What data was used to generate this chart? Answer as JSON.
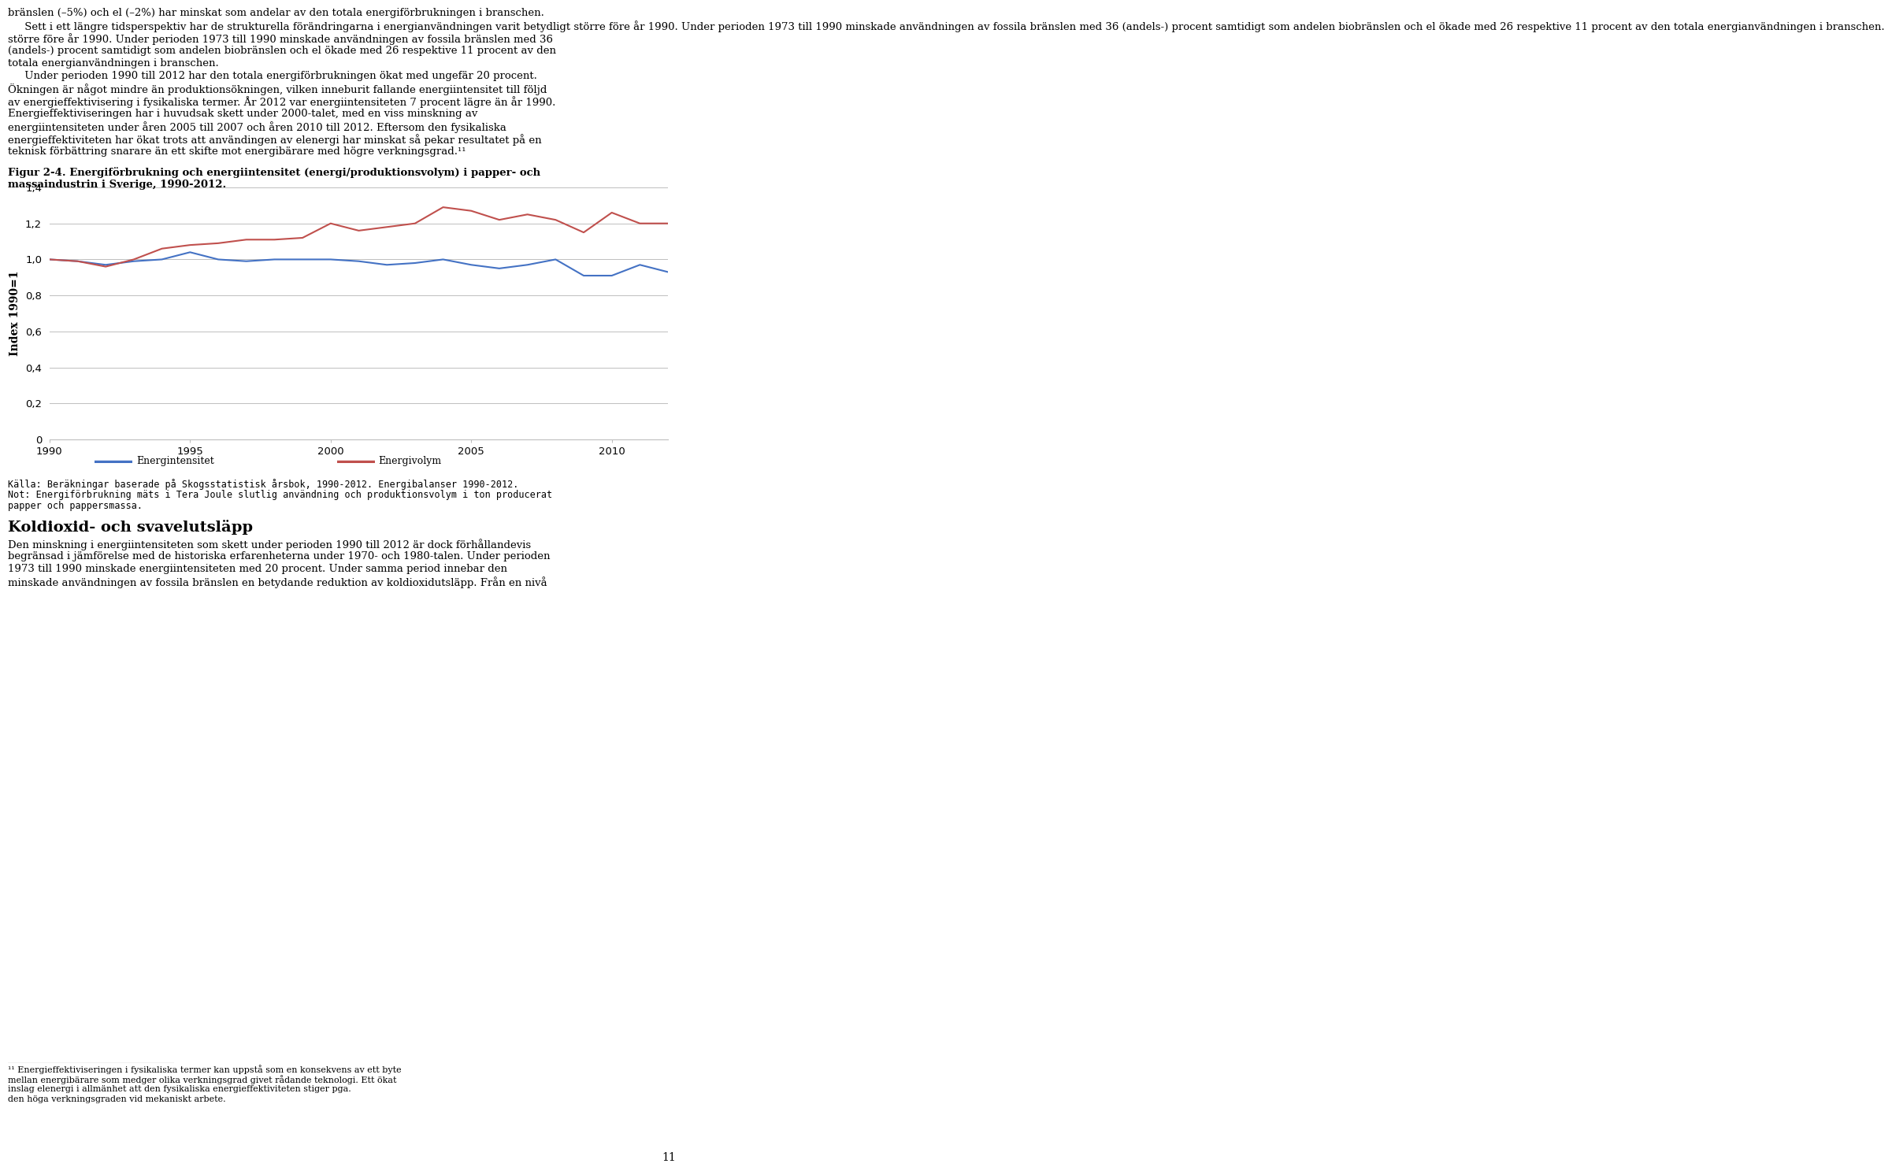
{
  "years": [
    1990,
    1991,
    1992,
    1993,
    1994,
    1995,
    1996,
    1997,
    1998,
    1999,
    2000,
    2001,
    2002,
    2003,
    2004,
    2005,
    2006,
    2007,
    2008,
    2009,
    2010,
    2011,
    2012
  ],
  "energiintensitet": [
    1.0,
    0.99,
    0.97,
    0.99,
    1.0,
    1.04,
    1.0,
    0.99,
    1.0,
    1.0,
    1.0,
    0.99,
    0.97,
    0.98,
    1.0,
    0.97,
    0.95,
    0.97,
    1.0,
    0.91,
    0.91,
    0.97,
    0.93
  ],
  "energivolym": [
    1.0,
    0.99,
    0.96,
    1.0,
    1.06,
    1.08,
    1.09,
    1.11,
    1.11,
    1.12,
    1.2,
    1.16,
    1.18,
    1.2,
    1.29,
    1.27,
    1.22,
    1.25,
    1.22,
    1.15,
    1.26,
    1.2,
    1.2
  ],
  "energiintensitet_color": "#4472C4",
  "energivolym_color": "#C0504D",
  "ylim": [
    0,
    1.4
  ],
  "yticks": [
    0,
    0.2,
    0.4,
    0.6,
    0.8,
    1.0,
    1.2,
    1.4
  ],
  "xticks": [
    1990,
    1995,
    2000,
    2005,
    2010
  ],
  "ylabel": "Index 1990=1",
  "legend_labels": [
    "Energintensitet",
    "Energivolym"
  ],
  "figure_caption_line1": "Figur 2-4. Energiförbrukning och energiintensitet (energi/produktionsvolym) i papper- och",
  "figure_caption_line2": "massaindustrin i Sverige, 1990-2012.",
  "source_line1": "Källa: Beräkningar baserade på Skogsstatistisk årsbok, 1990-2012. Energibalanser 1990-2012.",
  "source_line2": "Not: Energiförbrukning mäts i Tera Joule slutlig användning och produktionsvolym i ton producerat",
  "source_line3": "papper och pappersmassa.",
  "bg_color": "#ffffff",
  "grid_color": "#bebebe",
  "line_width": 1.5,
  "text_above": [
    "bränslen (–5%) och el (–2%) har minskat som andelar av den totala energiförbrukningen i branschen.",
    "     Sett i ett längre tidsperspektiv har de strukturella förändringarna i energianvändningen varit betydligt större före år 1990. Under perioden 1973 till 1990 minskade användningen av fossila bränslen med 36 (andels-) procent samtidigt som andelen biobränslen och el ökade med 26 respektive 11 procent av den totala energianvändningen i branschen.",
    "     Under perioden 1990 till 2012 har den totala energiförbrukningen ökat med ungefär 20 procent. Ökningen är något mindre än produktionsökningen, vilken inneburit fallande energiintensitet till följd av energieffektivisering i fysikaliska termer. År 2012 var energiintensiteten 7 procent lägre än år 1990. Energieffektiviseringen har i huvudsak skett under 2000-talet, med en viss minskning av energiintensiteten under åren 2005 till 2007 och åren 2010 till 2012. Eftersom den fysikaliska energieffektiviteten har ökat trots att användingen av elenergi har minskat så pekar resultatet på en teknisk förbättring snarare än ett skifte mot energibärare med högre verkningsgrad.¹¹"
  ],
  "text_below_heading": "Koldioxid- och svavelutsläpp",
  "text_below": [
    "Den minskning i energiintensiteten som skett under perioden 1990 till 2012 är dock förhållandevis begränsad i jämförelse med de historiska erfarenheterna under 1970- och 1980-talen. Under perioden 1973 till 1990 minskade energiintensiteten med 20 procent. Under samma period innebar den minskade användningen av fossila bränslen en betydande reduktion av koldioxidutsläpp. Från en nivå"
  ],
  "footnote_line": "¹¹ Energieffektiviseringen i fysikaliska termer kan uppstå som en konsekvens av ett byte",
  "footnote_lines": [
    "¹¹ Energieffektiviseringen i fysikaliska termer kan uppstå som en konsekvens av ett byte",
    "mellan energibärare som medger olika verkningsgrad givet rådande teknologi. Ett ökat",
    "inslag elenergi i allmänhet att den fysikaliska energieffektiviteten stiger pga.",
    "den höga verkningsgraden vid mekaniskt arbete."
  ],
  "page_number": "11"
}
